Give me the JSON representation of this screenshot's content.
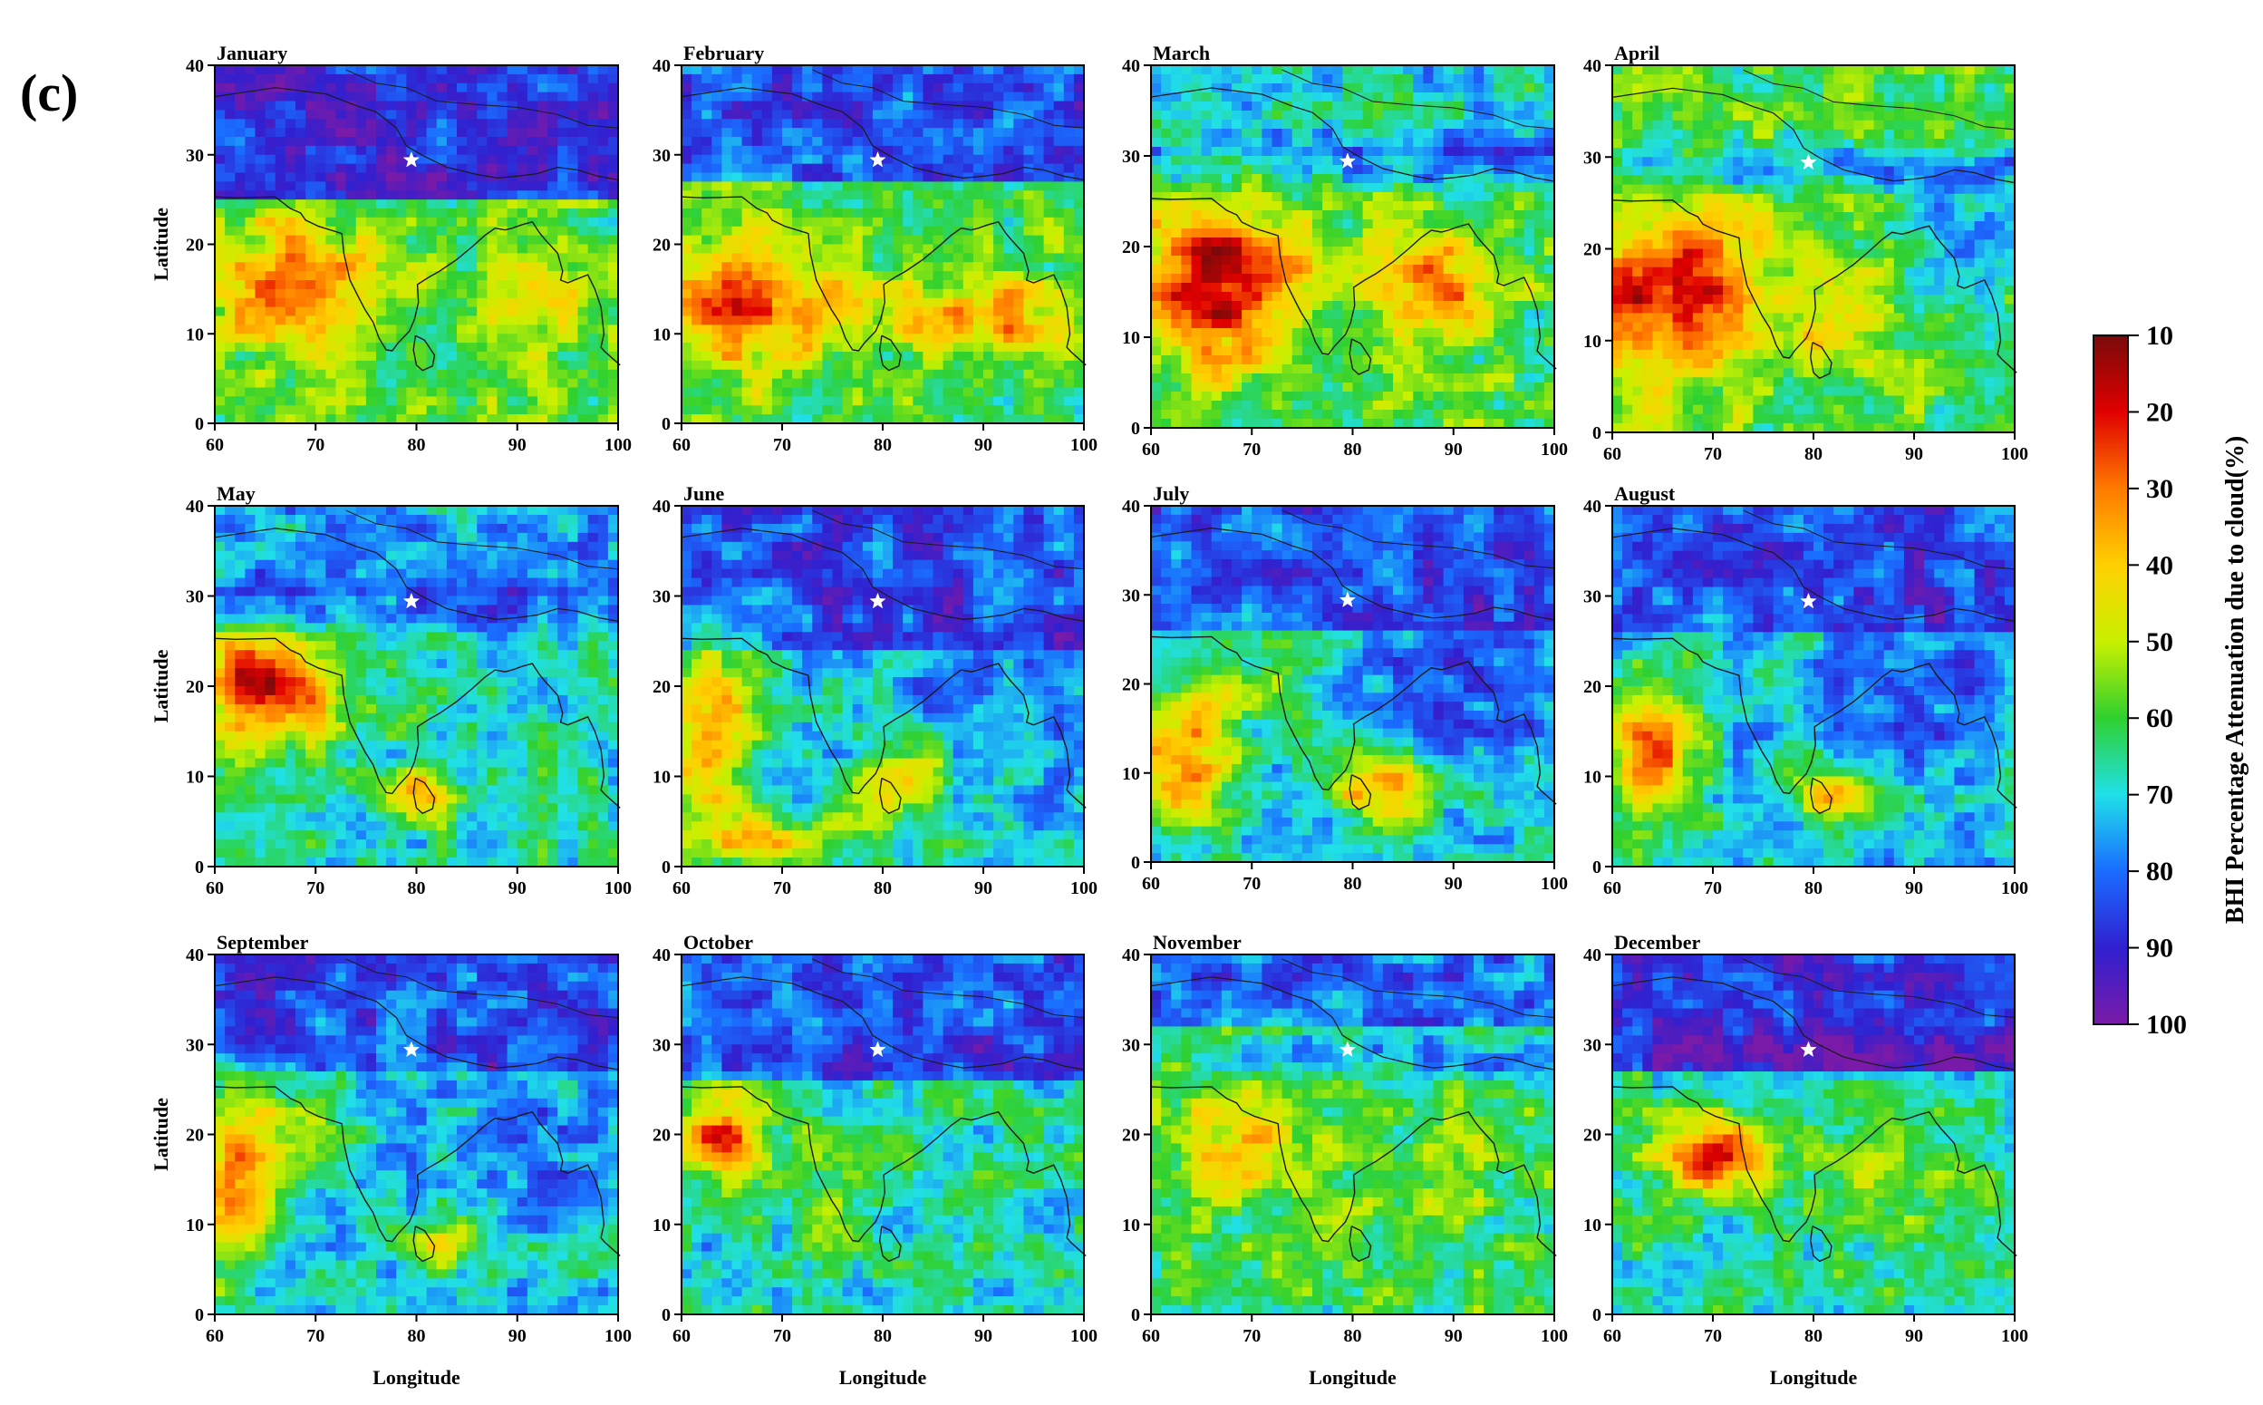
{
  "figure_label": "(c)",
  "x_axis_label": "Longitude",
  "y_axis_label": "Latitude",
  "x_ticks": [
    "60",
    "70",
    "80",
    "90",
    "100"
  ],
  "y_ticks": [
    "0",
    "10",
    "20",
    "30",
    "40"
  ],
  "x_range": [
    60,
    100
  ],
  "y_range": [
    0,
    40
  ],
  "marker": {
    "symbol": "star",
    "lon": 79.5,
    "lat": 29.4,
    "color": "#ffffff"
  },
  "colorbar": {
    "title": "BHI Percentage Attenuation due to cloud(%)",
    "ticks": [
      "10",
      "20",
      "30",
      "40",
      "50",
      "60",
      "70",
      "80",
      "90",
      "100"
    ],
    "range": [
      10,
      100
    ],
    "colors": [
      "#7a0a0a",
      "#e00000",
      "#ff7a00",
      "#ffd000",
      "#c8f000",
      "#2fd12f",
      "#20e0e8",
      "#1a6cff",
      "#3020d0",
      "#7a1aa8"
    ]
  },
  "panels": [
    {
      "title": "January"
    },
    {
      "title": "February"
    },
    {
      "title": "March"
    },
    {
      "title": "April"
    },
    {
      "title": "May"
    },
    {
      "title": "June"
    },
    {
      "title": "July"
    },
    {
      "title": "August"
    },
    {
      "title": "September"
    },
    {
      "title": "October"
    },
    {
      "title": "November"
    },
    {
      "title": "December"
    }
  ]
}
